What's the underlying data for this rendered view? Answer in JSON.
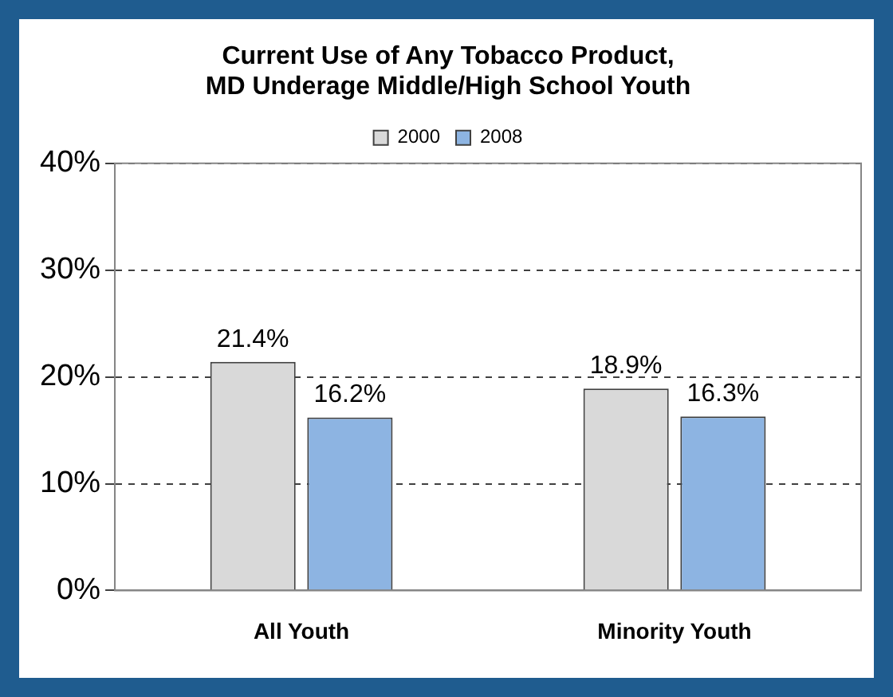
{
  "chart_data": {
    "type": "bar",
    "title": "Current Use of Any Tobacco Product,\nMD Underage Middle/High School Youth",
    "categories": [
      "All Youth",
      "Minority Youth"
    ],
    "series": [
      {
        "name": "2000",
        "color": "#d9d9d9",
        "values": [
          21.4,
          18.9
        ],
        "value_labels": [
          "21.4%",
          "18.9%"
        ]
      },
      {
        "name": "2008",
        "color": "#8db4e2",
        "values": [
          16.2,
          16.3
        ],
        "value_labels": [
          "16.2%",
          "16.3%"
        ]
      }
    ],
    "ylim": [
      0,
      40
    ],
    "yticks": [
      {
        "value": 0,
        "label": "0%"
      },
      {
        "value": 10,
        "label": "10%"
      },
      {
        "value": 20,
        "label": "20%"
      },
      {
        "value": 30,
        "label": "30%"
      },
      {
        "value": 40,
        "label": "40%"
      }
    ],
    "grid": "y",
    "legend": "top"
  }
}
